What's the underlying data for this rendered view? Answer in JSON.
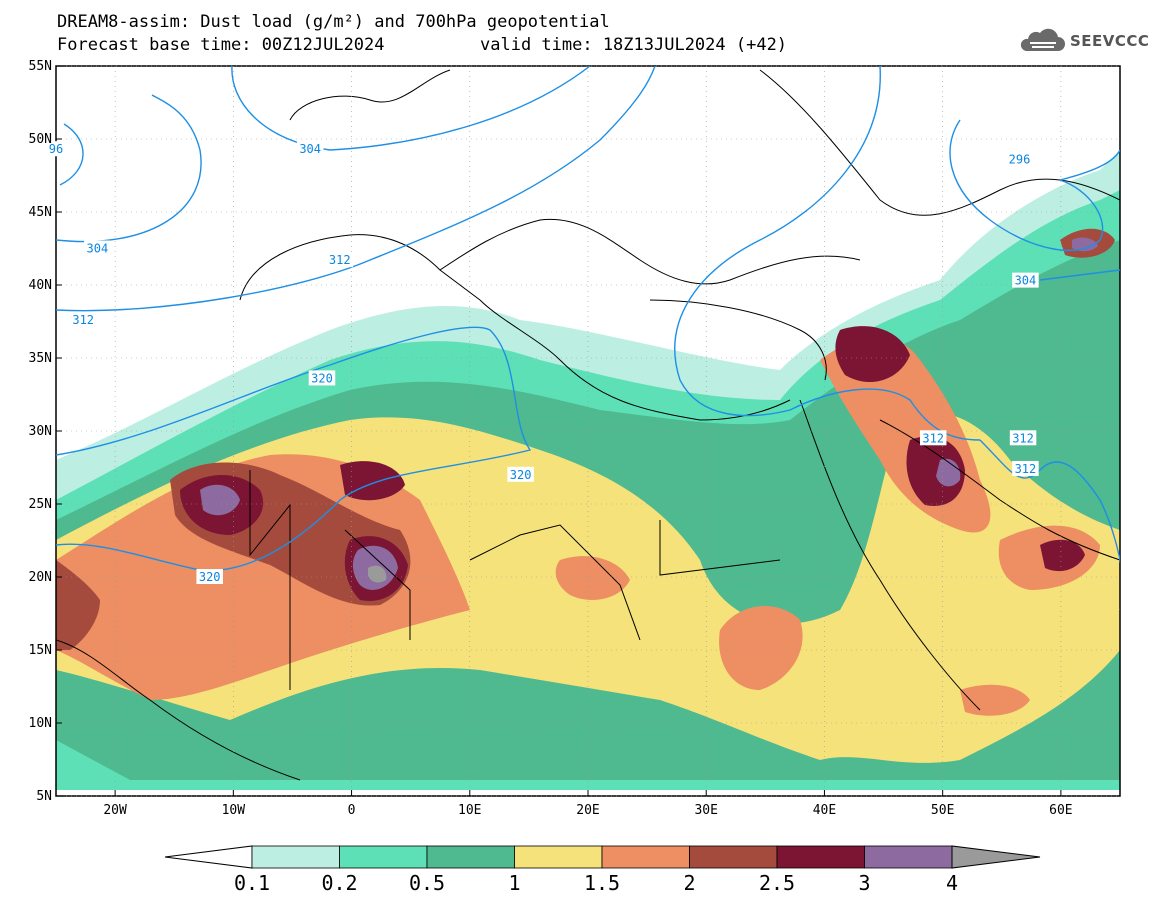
{
  "title": {
    "line1": "DREAM8-assim: Dust load (g/m²) and 700hPa geopotential",
    "line2_base": "Forecast base time: 00Z12JUL2024",
    "line2_valid": "valid time: 18Z13JUL2024 (+42)"
  },
  "logo": {
    "icon": "cloud-icon",
    "text": "SEEVCCC"
  },
  "map": {
    "lon_range": [
      -25,
      65
    ],
    "lat_range": [
      5,
      55
    ],
    "lon_ticks": [
      {
        "value": -20,
        "label": "20W"
      },
      {
        "value": -10,
        "label": "10W"
      },
      {
        "value": 0,
        "label": "0"
      },
      {
        "value": 10,
        "label": "10E"
      },
      {
        "value": 20,
        "label": "20E"
      },
      {
        "value": 30,
        "label": "30E"
      },
      {
        "value": 40,
        "label": "40E"
      },
      {
        "value": 50,
        "label": "50E"
      },
      {
        "value": 60,
        "label": "60E"
      }
    ],
    "lat_ticks": [
      {
        "value": 55,
        "label": "55N"
      },
      {
        "value": 50,
        "label": "50N"
      },
      {
        "value": 45,
        "label": "45N"
      },
      {
        "value": 40,
        "label": "40N"
      },
      {
        "value": 35,
        "label": "35N"
      },
      {
        "value": 30,
        "label": "30N"
      },
      {
        "value": 25,
        "label": "25N"
      },
      {
        "value": 20,
        "label": "20N"
      },
      {
        "value": 15,
        "label": "15N"
      },
      {
        "value": 10,
        "label": "10N"
      },
      {
        "value": 5,
        "label": "5N"
      }
    ],
    "contour_labels": [
      {
        "text": "96",
        "lon": -25,
        "lat": 49.3
      },
      {
        "text": "304",
        "lon": -21.5,
        "lat": 42.5
      },
      {
        "text": "304",
        "lon": -3.5,
        "lat": 49.3
      },
      {
        "text": "312",
        "lon": -1.0,
        "lat": 41.7
      },
      {
        "text": "312",
        "lon": -22.7,
        "lat": 37.6
      },
      {
        "text": "320",
        "lon": -2.5,
        "lat": 33.6
      },
      {
        "text": "320",
        "lon": 14.3,
        "lat": 27.0
      },
      {
        "text": "320",
        "lon": -12.0,
        "lat": 20.0
      },
      {
        "text": "296",
        "lon": 56.5,
        "lat": 48.6
      },
      {
        "text": "304",
        "lon": 57.0,
        "lat": 40.3
      },
      {
        "text": "312",
        "lon": 49.2,
        "lat": 29.5
      },
      {
        "text": "312",
        "lon": 56.8,
        "lat": 29.5
      },
      {
        "text": "312",
        "lon": 57.0,
        "lat": 27.4
      }
    ]
  },
  "colorbar": {
    "colors": [
      "#bdeee2",
      "#5ee0b6",
      "#4fb98f",
      "#f6e27a",
      "#ed8f62",
      "#a54b3e",
      "#7b1533",
      "#8d6aa0",
      "#9a9a9a"
    ],
    "labels": [
      "0.1",
      "0.2",
      "0.5",
      "1",
      "1.5",
      "2",
      "2.5",
      "3",
      "4"
    ]
  }
}
